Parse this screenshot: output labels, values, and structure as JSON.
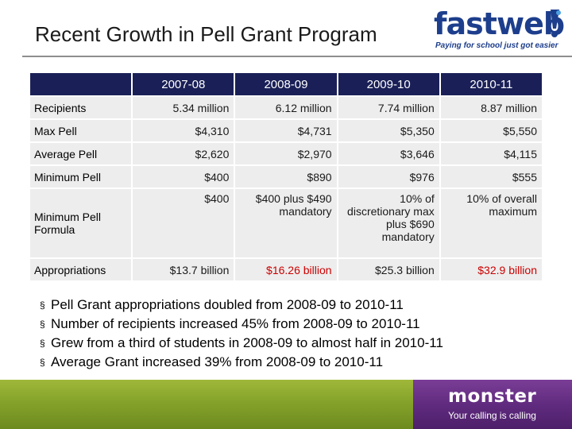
{
  "slide": {
    "title": "Recent Growth in Pell Grant Program"
  },
  "logo_fastweb": {
    "word_fast": "fast",
    "word_web": "web",
    "tagline": "Paying for school just got easier",
    "brand_color": "#1d3e8c",
    "accent_color": "#4aa0e0"
  },
  "table": {
    "header_color": "#1a2057",
    "columns": [
      "2007-08",
      "2008-09",
      "2009-10",
      "2010-11"
    ],
    "rows": [
      {
        "label": "Recipients",
        "cells": [
          "5.34 million",
          "6.12 million",
          "7.74 million",
          "8.87 million"
        ]
      },
      {
        "label": "Max Pell",
        "cells": [
          "$4,310",
          "$4,731",
          "$5,350",
          "$5,550"
        ]
      },
      {
        "label": "Average Pell",
        "cells": [
          "$2,620",
          "$2,970",
          "$3,646",
          "$4,115"
        ]
      },
      {
        "label": "Minimum Pell",
        "cells": [
          "$400",
          "$890",
          "$976",
          "$555"
        ]
      },
      {
        "label": "Minimum Pell Formula",
        "cells": [
          "$400",
          "$400 plus $490 mandatory",
          "10% of discretionary max plus $690 mandatory",
          "10% of overall maximum"
        ]
      },
      {
        "label": "Appropriations",
        "cells": [
          "$13.7 billion",
          "$16.26 billion",
          "$25.3 billion",
          "$32.9 billion"
        ],
        "highlight_color": "#cc0000"
      }
    ]
  },
  "bullets": {
    "marker": "§",
    "items": [
      "Pell Grant appropriations doubled from 2008-09 to 2010-11",
      "Number of recipients increased 45% from 2008-09 to 2010-11",
      "Grew from a third of students in 2008-09 to almost half in 2010-11",
      "Average Grant increased 39% from 2008-09 to 2010-11"
    ]
  },
  "footer": {
    "brand": "monster",
    "tagline": "Your calling is calling",
    "green_color": "#85a32a",
    "purple_color": "#5e2a7d"
  }
}
